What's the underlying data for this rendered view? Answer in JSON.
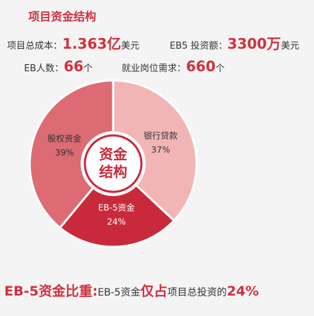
{
  "header": {
    "title": "项目资金结构"
  },
  "stats": [
    {
      "label": "项目总成本：",
      "value": "1.363亿",
      "unit": "美元"
    },
    {
      "label": "EB5 投资额：",
      "value": "3300万",
      "unit": "美元"
    },
    {
      "label": "EB人数：",
      "value": "66",
      "unit": "个"
    },
    {
      "label": "就业岗位需求：",
      "value": "660",
      "unit": "个"
    }
  ],
  "chart_data": {
    "type": "pie",
    "categories": [
      "银行贷款",
      "EB-5资金",
      "股权资金"
    ],
    "values": [
      37,
      24,
      39
    ],
    "value_labels": [
      "37%",
      "24%",
      "39%"
    ],
    "colors": [
      "#f2b5b5",
      "#c92a3b",
      "#dc6b73"
    ],
    "center_label": [
      "资金",
      "结构"
    ]
  },
  "footer": {
    "parts": [
      "EB-5资金比重:",
      "EB-5资金",
      "仅占",
      "项目总投资的",
      "24%"
    ]
  }
}
